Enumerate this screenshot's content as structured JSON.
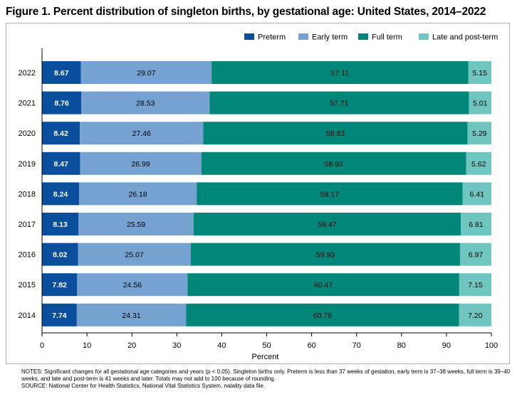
{
  "title": "Figure 1. Percent distribution of singleton births, by gestational age: United States, 2014–2022",
  "chart_data": {
    "type": "bar",
    "orientation": "horizontal",
    "stacked": true,
    "categories": [
      "2022",
      "2021",
      "2020",
      "2019",
      "2018",
      "2017",
      "2016",
      "2015",
      "2014"
    ],
    "series": [
      {
        "name": "Preterm",
        "color": "#0a4f9e",
        "values": [
          8.67,
          8.76,
          8.42,
          8.47,
          8.24,
          8.13,
          8.02,
          7.82,
          7.74
        ]
      },
      {
        "name": "Early term",
        "color": "#76a2d2",
        "values": [
          29.07,
          28.53,
          27.46,
          26.99,
          26.18,
          25.59,
          25.07,
          24.56,
          24.31
        ]
      },
      {
        "name": "Full term",
        "color": "#00877a",
        "values": [
          57.11,
          57.71,
          58.83,
          58.92,
          59.17,
          59.47,
          59.93,
          60.47,
          60.76
        ]
      },
      {
        "name": "Late and post-term",
        "color": "#6fc6c0",
        "values": [
          5.15,
          5.01,
          5.29,
          5.62,
          6.41,
          6.81,
          6.97,
          7.15,
          7.2
        ]
      }
    ],
    "value_labels": [
      [
        "8.67",
        "29.07",
        "57.11",
        "5.15"
      ],
      [
        "8.76",
        "28.53",
        "57.71",
        "5.01"
      ],
      [
        "8.42",
        "27.46",
        "58.83",
        "5.29"
      ],
      [
        "8.47",
        "26.99",
        "58.92",
        "5.62"
      ],
      [
        "8.24",
        "26.18",
        "59.17",
        "6.41"
      ],
      [
        "8.13",
        "25.59",
        "59.47",
        "6.81"
      ],
      [
        "8.02",
        "25.07",
        "59.93",
        "6.97"
      ],
      [
        "7.82",
        "24.56",
        "60.47",
        "7.15"
      ],
      [
        "7.74",
        "24.31",
        "60.76",
        "7.20"
      ]
    ],
    "xlabel": "Percent",
    "xlim": [
      0,
      100
    ],
    "xticks": [
      0,
      10,
      20,
      30,
      40,
      50,
      60,
      70,
      80,
      90,
      100
    ],
    "legend_position": "top-right",
    "grid": false
  },
  "notes": {
    "notes_text": "NOTES: Significant changes for all gestational age categories and years (p < 0.05). Singleton births only. Preterm is less than 37 weeks of gestation, early term is 37–38 weeks, full term is 39–40 weeks, and late and post-term is 41 weeks and later. Totals may not add to 100 because of rounding.",
    "source_text": "SOURCE: National Center for Health Statistics, National Vital Statistics System, natality data file."
  }
}
